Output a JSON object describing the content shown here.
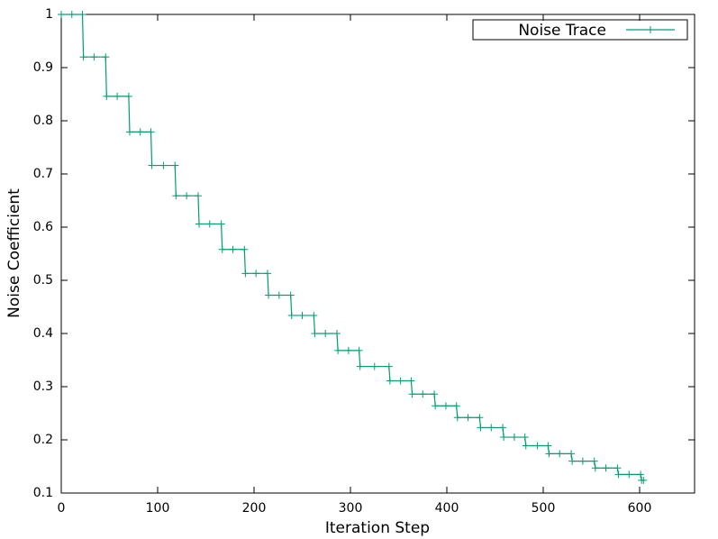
{
  "chart_data": {
    "type": "line",
    "xlabel": "Iteration Step",
    "ylabel": "Noise Coefficient",
    "xlim": [
      0,
      657
    ],
    "ylim": [
      0.1,
      1
    ],
    "xticks": [
      0,
      100,
      200,
      300,
      400,
      500,
      600
    ],
    "yticks": [
      0.1,
      0.2,
      0.3,
      0.4,
      0.5,
      0.6,
      0.7,
      0.8,
      0.9,
      1
    ],
    "legend": "top-right",
    "x": [
      0,
      11,
      22,
      23,
      34,
      46,
      47,
      58,
      70,
      71,
      82,
      93,
      94,
      106,
      118,
      119,
      130,
      142,
      143,
      154,
      166,
      167,
      178,
      190,
      191,
      202,
      214,
      215,
      226,
      238,
      239,
      250,
      262,
      263,
      274,
      286,
      287,
      298,
      309,
      310,
      325,
      340,
      341,
      352,
      363,
      364,
      375,
      387,
      388,
      399,
      410,
      411,
      422,
      434,
      435,
      446,
      458,
      459,
      470,
      481,
      482,
      494,
      505,
      506,
      517,
      529,
      530,
      541,
      553,
      554,
      565,
      577,
      578,
      589,
      601,
      602,
      604
    ],
    "series": [
      {
        "name": "Noise Trace",
        "color": "#009e73",
        "values": [
          1,
          1,
          1,
          0.92,
          0.92,
          0.92,
          0.846,
          0.846,
          0.846,
          0.779,
          0.779,
          0.779,
          0.716,
          0.716,
          0.716,
          0.659,
          0.659,
          0.659,
          0.606,
          0.606,
          0.606,
          0.558,
          0.558,
          0.558,
          0.513,
          0.513,
          0.513,
          0.472,
          0.472,
          0.472,
          0.434,
          0.434,
          0.434,
          0.4,
          0.4,
          0.4,
          0.368,
          0.368,
          0.368,
          0.338,
          0.338,
          0.338,
          0.311,
          0.311,
          0.311,
          0.286,
          0.286,
          0.286,
          0.264,
          0.264,
          0.264,
          0.242,
          0.242,
          0.242,
          0.223,
          0.223,
          0.223,
          0.205,
          0.205,
          0.205,
          0.189,
          0.189,
          0.189,
          0.174,
          0.174,
          0.174,
          0.16,
          0.16,
          0.16,
          0.147,
          0.147,
          0.147,
          0.135,
          0.135,
          0.135,
          0.124,
          0.124
        ]
      }
    ]
  }
}
